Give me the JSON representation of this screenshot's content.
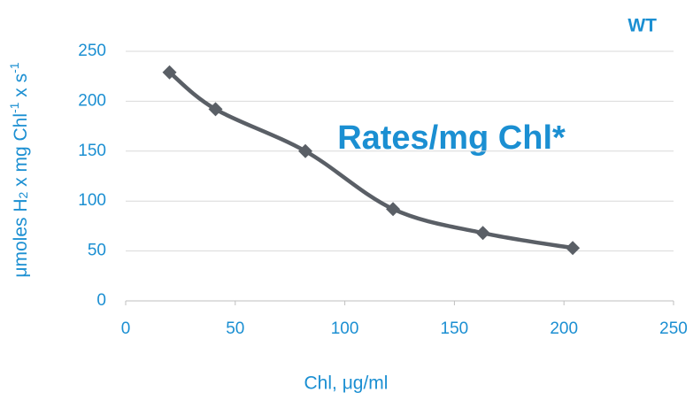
{
  "chart_data": {
    "type": "line",
    "annotation": "Rates/mg Chl*",
    "corner_label": "WT",
    "xlabel": "Chl, μg/ml",
    "ylabel": [
      "μmoles H",
      "2",
      " x mg Chl",
      "-1",
      " x s",
      "-1"
    ],
    "x": [
      20,
      41,
      82,
      122,
      163,
      204
    ],
    "series": [
      {
        "color": "#5a5f66",
        "values": [
          229,
          192,
          150,
          92,
          68,
          53
        ]
      }
    ],
    "xlim": [
      0,
      250
    ],
    "xticks": [
      0,
      50,
      100,
      150,
      200,
      250
    ],
    "ylim": [
      0,
      250
    ],
    "yticks": [
      0,
      50,
      100,
      150,
      200,
      250
    ],
    "grid": true,
    "smooth": true,
    "text_color": "#1b8fd2"
  }
}
